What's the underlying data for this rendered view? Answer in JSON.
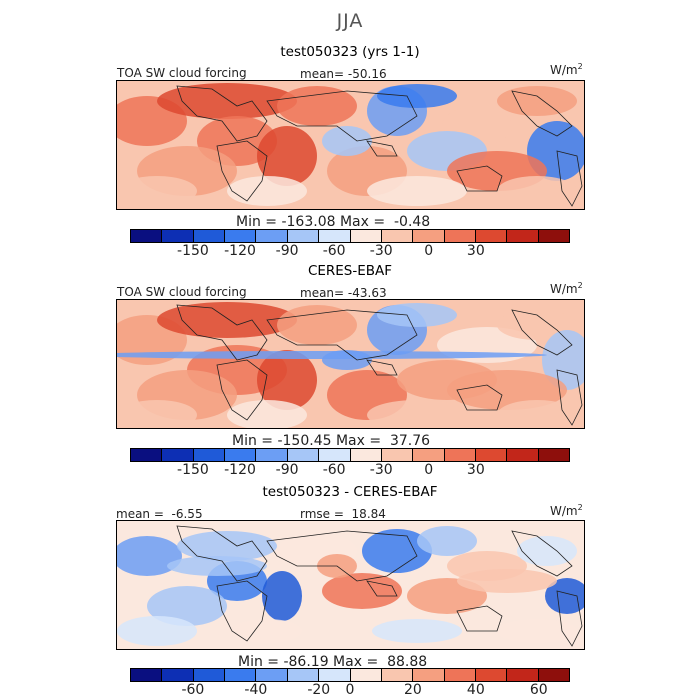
{
  "season": "JJA",
  "colors": {
    "sw": [
      "#0a0f80",
      "#0d2fb4",
      "#1f5ad8",
      "#3a7bee",
      "#6c9ef4",
      "#a6c6f7",
      "#d6e6fb",
      "#fbe8de",
      "#f9c6af",
      "#f59f80",
      "#ee7458",
      "#dd4930",
      "#c2261a",
      "#8e0f0c"
    ],
    "diff": [
      "#0a0f80",
      "#0d2fb4",
      "#1f5ad8",
      "#3a7bee",
      "#6c9ef4",
      "#a6c6f7",
      "#d6e6fb",
      "#fbe8de",
      "#f9c6af",
      "#f59f80",
      "#ee7458",
      "#dd4930",
      "#c2261a",
      "#8e0f0c"
    ],
    "land": "#222222"
  },
  "panels": [
    {
      "title": "test050323 (yrs 1-1)",
      "left_label": "TOA SW cloud forcing",
      "center_label": "mean= -50.16",
      "units": "W/m",
      "units_sup": "2",
      "stats": "Min = -163.08 Max =  -0.48",
      "ticks": [
        "-150",
        "-120",
        "-90",
        "-60",
        "-30",
        "0",
        "30"
      ]
    },
    {
      "title": "CERES-EBAF",
      "left_label": "TOA SW cloud forcing",
      "center_label": "mean= -43.63",
      "units": "W/m",
      "units_sup": "2",
      "stats": "Min = -150.45 Max =  37.76",
      "ticks": [
        "-150",
        "-120",
        "-90",
        "-60",
        "-30",
        "0",
        "30"
      ]
    },
    {
      "title": "test050323 - CERES-EBAF",
      "left_label": "mean =  -6.55",
      "center_label": "rmse =  18.84",
      "units": "W/m",
      "units_sup": "2",
      "stats": "Min = -86.19 Max =  88.88",
      "ticks": [
        "-60",
        "-40",
        "-20",
        "0",
        "20",
        "40",
        "60"
      ]
    }
  ],
  "chart_data": [
    {
      "type": "heatmap",
      "title": "test050323 (yrs 1-1)",
      "variable": "TOA SW cloud forcing",
      "mean": -50.16,
      "min": -163.08,
      "max": -0.48,
      "units": "W/m2",
      "colorbar_ticks": [
        -150,
        -120,
        -90,
        -60,
        -30,
        0,
        30
      ],
      "colorbar_levels": [
        -165,
        -150,
        -135,
        -120,
        -105,
        -90,
        -75,
        -60,
        -45,
        -30,
        -15,
        0,
        15,
        30,
        45
      ]
    },
    {
      "type": "heatmap",
      "title": "CERES-EBAF",
      "variable": "TOA SW cloud forcing",
      "mean": -43.63,
      "min": -150.45,
      "max": 37.76,
      "units": "W/m2",
      "colorbar_ticks": [
        -150,
        -120,
        -90,
        -60,
        -30,
        0,
        30
      ],
      "colorbar_levels": [
        -165,
        -150,
        -135,
        -120,
        -105,
        -90,
        -75,
        -60,
        -45,
        -30,
        -15,
        0,
        15,
        30,
        45
      ]
    },
    {
      "type": "heatmap",
      "title": "test050323 - CERES-EBAF",
      "mean": -6.55,
      "rmse": 18.84,
      "min": -86.19,
      "max": 88.88,
      "units": "W/m2",
      "colorbar_ticks": [
        -60,
        -40,
        -20,
        0,
        20,
        40,
        60
      ],
      "colorbar_levels": [
        -70,
        -60,
        -50,
        -40,
        -30,
        -20,
        -10,
        0,
        10,
        20,
        30,
        40,
        50,
        60,
        70
      ]
    }
  ]
}
